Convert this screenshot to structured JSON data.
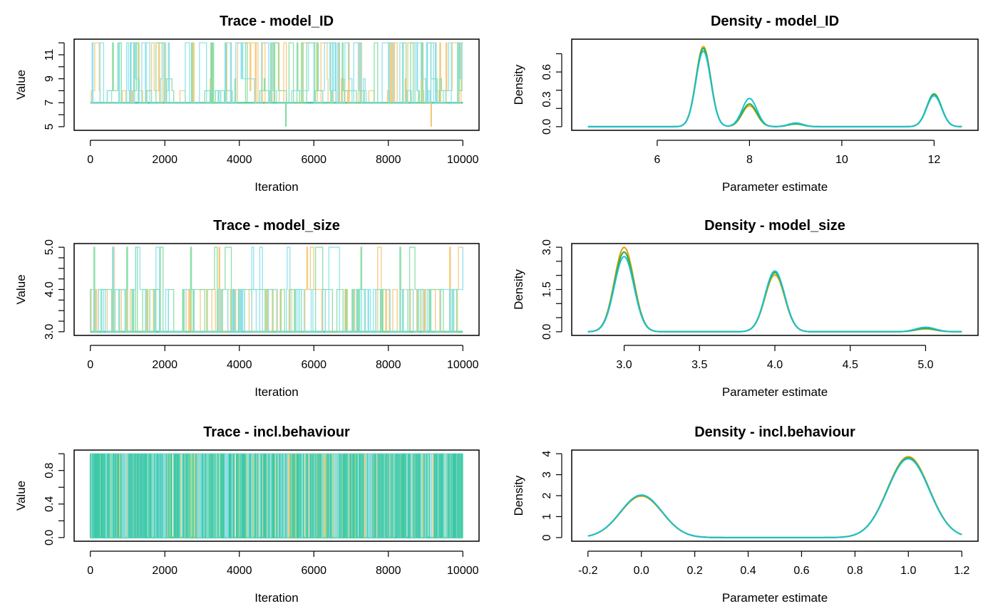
{
  "colors": {
    "chain1": "#E69F00",
    "chain2": "#22B14C",
    "chain3": "#1CBFD0",
    "trace_chain1": "#F2C46E",
    "trace_chain2": "#7ADB9A",
    "trace_chain3": "#7FDDEA",
    "trace_mix": "#3CC8A5"
  },
  "chart_data": [
    {
      "id": "trace_model_ID",
      "type": "line",
      "title": "Trace - model_ID",
      "xlabel": "Iteration",
      "ylabel": "Value",
      "xlim": [
        0,
        10000
      ],
      "ylim": [
        5,
        12
      ],
      "xticks": [
        0,
        2000,
        4000,
        6000,
        8000,
        10000
      ],
      "xtick_labels": [
        "0",
        "2000",
        "4000",
        "6000",
        "8000",
        "10000"
      ],
      "yticks": [
        5,
        6,
        7,
        8,
        9,
        10,
        11,
        12
      ],
      "yticks_labeled": [
        5,
        7,
        9,
        11
      ],
      "ytick_labels": [
        "5",
        "7",
        "9",
        "11"
      ],
      "trace": {
        "levels": [
          7,
          8,
          9,
          12
        ],
        "weights": [
          0.55,
          0.15,
          0.05,
          0.25
        ],
        "base": 7,
        "outliers": [
          [
            5250,
            5,
            "chain2"
          ],
          [
            9150,
            5,
            "chain1"
          ]
        ]
      }
    },
    {
      "id": "density_model_ID",
      "type": "line",
      "title": "Density - model_ID",
      "xlabel": "Parameter estimate",
      "ylabel": "Density",
      "xlim": [
        4.5,
        12.6
      ],
      "ylim": [
        0,
        0.92
      ],
      "xticks": [
        6,
        8,
        10,
        12
      ],
      "xtick_labels": [
        "6",
        "8",
        "10",
        "12"
      ],
      "yticks": [
        0,
        0.2,
        0.4,
        0.6,
        0.8
      ],
      "yticks_labeled": [
        0,
        0.3,
        0.6
      ],
      "ytick_labels": [
        "0.0",
        "0.3",
        "0.6"
      ],
      "bandwidth": 0.16,
      "series": [
        {
          "name": "chain1",
          "color_key": "chain1",
          "peaks": [
            [
              7,
              0.88
            ],
            [
              8,
              0.23
            ],
            [
              9,
              0.03
            ],
            [
              12,
              0.35
            ]
          ]
        },
        {
          "name": "chain2",
          "color_key": "chain2",
          "peaks": [
            [
              7,
              0.86
            ],
            [
              8,
              0.25
            ],
            [
              9,
              0.03
            ],
            [
              12,
              0.36
            ]
          ]
        },
        {
          "name": "chain3",
          "color_key": "chain3",
          "peaks": [
            [
              7,
              0.83
            ],
            [
              8,
              0.31
            ],
            [
              9,
              0.04
            ],
            [
              12,
              0.34
            ]
          ]
        }
      ]
    },
    {
      "id": "trace_model_size",
      "type": "line",
      "title": "Trace - model_size",
      "xlabel": "Iteration",
      "ylabel": "Value",
      "xlim": [
        0,
        10000
      ],
      "ylim": [
        3,
        5
      ],
      "xticks": [
        0,
        2000,
        4000,
        6000,
        8000,
        10000
      ],
      "xtick_labels": [
        "0",
        "2000",
        "4000",
        "6000",
        "8000",
        "10000"
      ],
      "yticks": [
        3,
        3.25,
        3.5,
        3.75,
        4,
        4.25,
        4.5,
        4.75,
        5
      ],
      "yticks_labeled": [
        3,
        4,
        5
      ],
      "ytick_labels": [
        "3.0",
        "4.0",
        "5.0"
      ],
      "trace": {
        "levels": [
          3,
          4,
          5
        ],
        "weights": [
          0.55,
          0.4,
          0.05
        ],
        "base": 3,
        "outliers": []
      }
    },
    {
      "id": "density_model_size",
      "type": "line",
      "title": "Density - model_size",
      "xlabel": "Parameter estimate",
      "ylabel": "Density",
      "xlim": [
        2.76,
        5.24
      ],
      "ylim": [
        0,
        3.0
      ],
      "xticks": [
        3.0,
        3.5,
        4.0,
        4.5,
        5.0
      ],
      "xtick_labels": [
        "3.0",
        "3.5",
        "4.0",
        "4.5",
        "5.0"
      ],
      "yticks": [
        0,
        0.5,
        1.0,
        1.5,
        2.0,
        2.5,
        3.0
      ],
      "yticks_labeled": [
        0,
        1.5,
        3.0
      ],
      "ytick_labels": [
        "0.0",
        "1.5",
        "3.0"
      ],
      "bandwidth": 0.065,
      "series": [
        {
          "name": "chain1",
          "color_key": "chain1",
          "peaks": [
            [
              3,
              3.0
            ],
            [
              4,
              2.02
            ],
            [
              5,
              0.1
            ]
          ]
        },
        {
          "name": "chain2",
          "color_key": "chain2",
          "peaks": [
            [
              3,
              2.83
            ],
            [
              4,
              2.1
            ],
            [
              5,
              0.12
            ]
          ]
        },
        {
          "name": "chain3",
          "color_key": "chain3",
          "peaks": [
            [
              3,
              2.67
            ],
            [
              4,
              2.16
            ],
            [
              5,
              0.16
            ]
          ]
        }
      ]
    },
    {
      "id": "trace_incl_behaviour",
      "type": "line",
      "title": "Trace - incl.behaviour",
      "xlabel": "Iteration",
      "ylabel": "Value",
      "xlim": [
        0,
        10000
      ],
      "ylim": [
        0,
        1
      ],
      "xticks": [
        0,
        2000,
        4000,
        6000,
        8000,
        10000
      ],
      "xtick_labels": [
        "0",
        "2000",
        "4000",
        "6000",
        "8000",
        "10000"
      ],
      "yticks": [
        0,
        0.2,
        0.4,
        0.6,
        0.8,
        1.0
      ],
      "yticks_labeled": [
        0,
        0.4,
        0.8
      ],
      "ytick_labels": [
        "0.0",
        "0.4",
        "0.8"
      ],
      "trace": {
        "levels": [
          0,
          1
        ],
        "weights": [
          0.35,
          0.65
        ],
        "base": 0,
        "outliers": [],
        "dense": true
      }
    },
    {
      "id": "density_incl_behaviour",
      "type": "line",
      "title": "Density - incl.behaviour",
      "xlabel": "Parameter estimate",
      "ylabel": "Density",
      "xlim": [
        -0.2,
        1.2
      ],
      "ylim": [
        0,
        4
      ],
      "xticks": [
        -0.2,
        0.0,
        0.2,
        0.4,
        0.6,
        0.8,
        1.0,
        1.2
      ],
      "xtick_labels": [
        "-0.2",
        "0.0",
        "0.2",
        "0.4",
        "0.6",
        "0.8",
        "1.0",
        "1.2"
      ],
      "yticks": [
        0,
        1,
        2,
        3,
        4
      ],
      "yticks_labeled": [
        0,
        1,
        2,
        3,
        4
      ],
      "ytick_labels": [
        "0",
        "1",
        "2",
        "3",
        "4"
      ],
      "bandwidth": 0.078,
      "series": [
        {
          "name": "chain1",
          "color_key": "chain1",
          "peaks": [
            [
              0,
              1.98
            ],
            [
              1,
              3.86
            ]
          ]
        },
        {
          "name": "chain2",
          "color_key": "chain2",
          "peaks": [
            [
              0,
              2.02
            ],
            [
              1,
              3.8
            ]
          ]
        },
        {
          "name": "chain3",
          "color_key": "chain3",
          "peaks": [
            [
              0,
              2.03
            ],
            [
              1,
              3.76
            ]
          ]
        }
      ]
    }
  ]
}
